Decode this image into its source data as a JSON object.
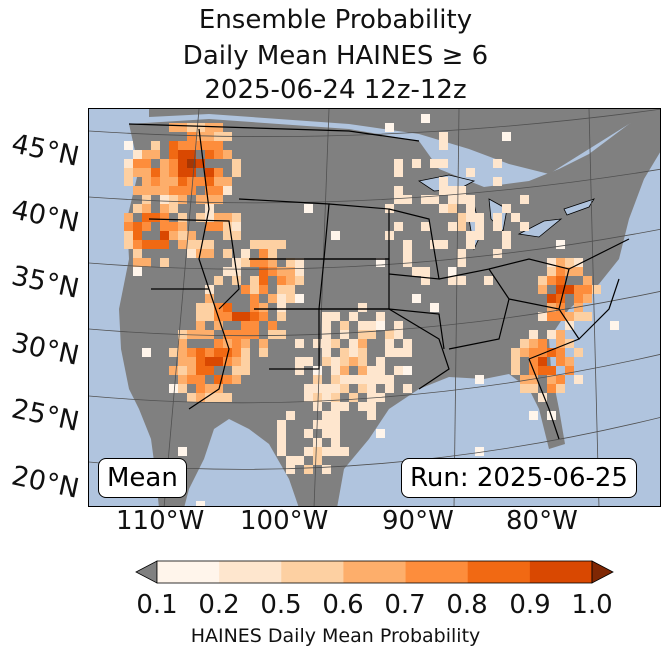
{
  "title": {
    "line1": "Ensemble Probability",
    "line2": "Daily Mean HAINES ≥ 6",
    "line3": "2025-06-24 12z-12z"
  },
  "map": {
    "lat_labels": [
      "45°N",
      "40°N",
      "35°N",
      "30°N",
      "25°N",
      "20°N"
    ],
    "lon_labels": [
      "110°W",
      "100°W",
      "90°W",
      "80°W"
    ],
    "stat_label": "Mean",
    "run_label": "Run: 2025-06-25",
    "colors": {
      "ocean": "#b0c4de",
      "land_low": "#808080",
      "border": "#000000",
      "grid": "#505050"
    }
  },
  "colorbar": {
    "ticks": [
      "0.1",
      "0.2",
      "0.5",
      "0.6",
      "0.7",
      "0.8",
      "0.9",
      "1.0"
    ],
    "colors": [
      "#fff5eb",
      "#fee6ce",
      "#fdd0a2",
      "#fdae6b",
      "#fd8d3c",
      "#f16913",
      "#d94801",
      "#a63603"
    ],
    "under_color": "#808080",
    "over_color": "#7f2704",
    "label": "HAINES Daily Mean Probability"
  }
}
